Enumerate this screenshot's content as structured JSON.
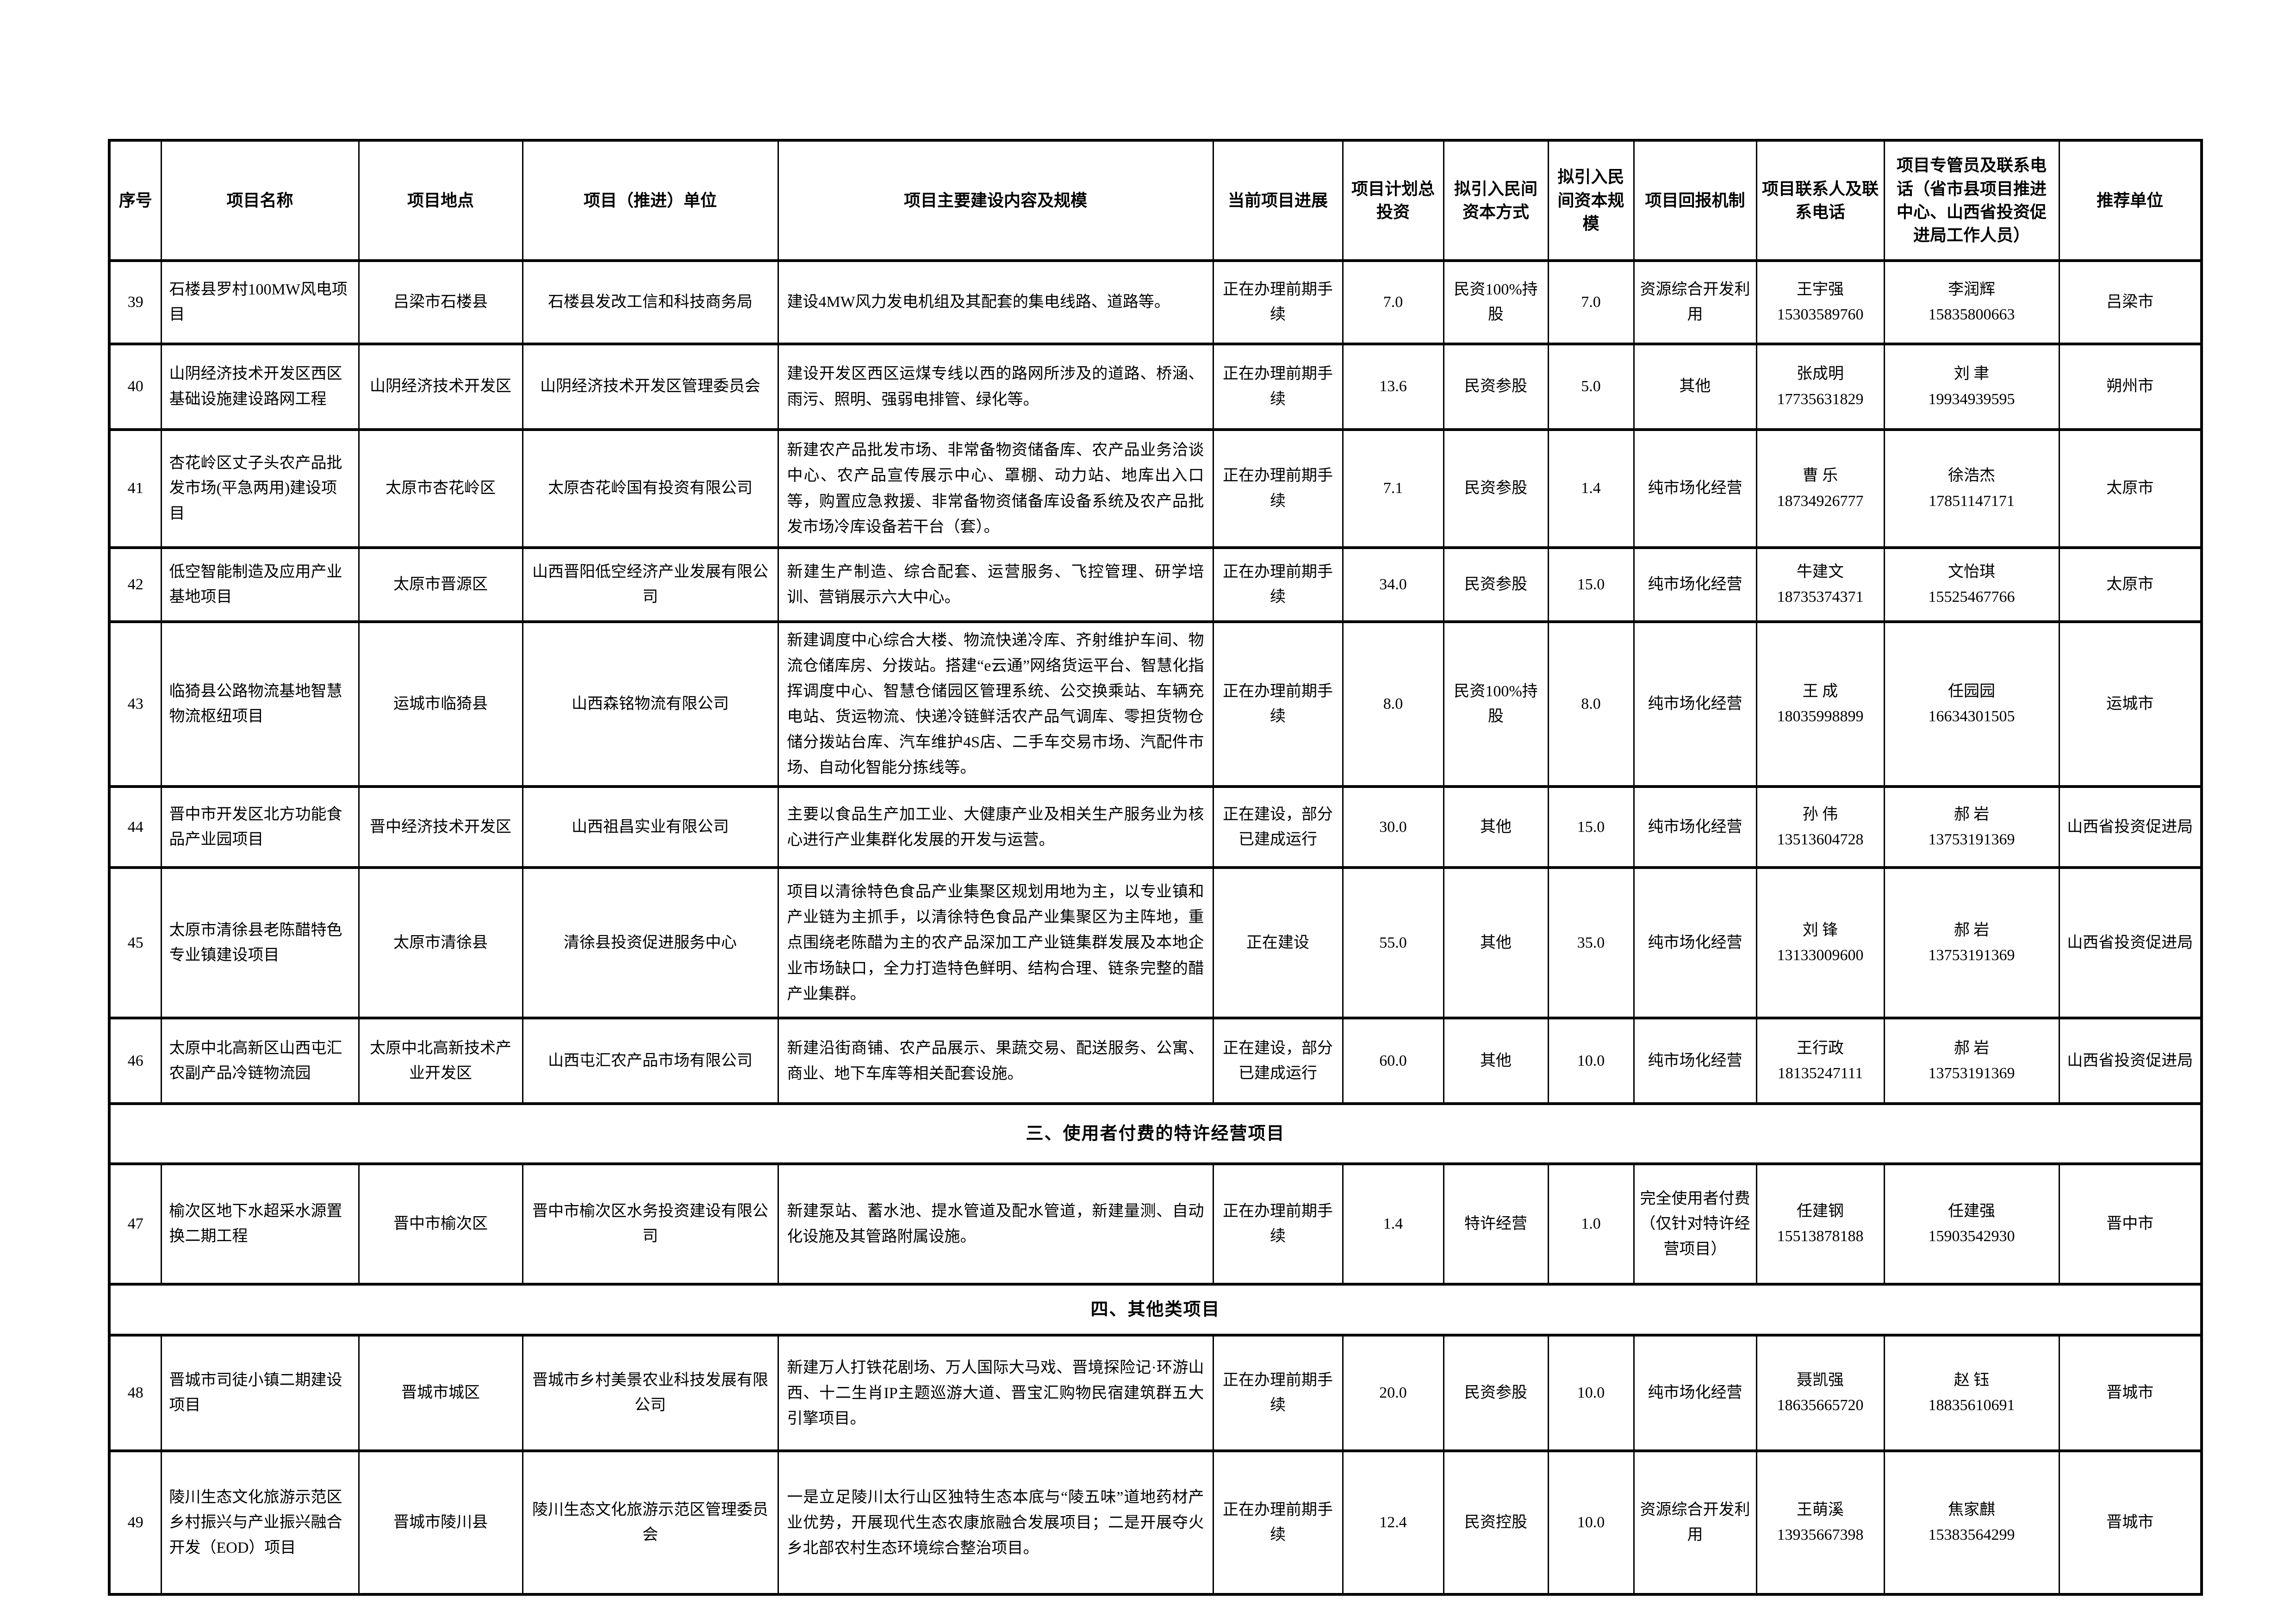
{
  "table": {
    "headers": [
      "序号",
      "项目名称",
      "项目地点",
      "项目（推进）单位",
      "项目主要建设内容及规模",
      "当前项目进展",
      "项目计划总投资",
      "拟引入民间资本方式",
      "拟引入民间资本规模",
      "项目回报机制",
      "项目联系人及联系电话",
      "项目专管员及联系电话（省市县项目推进中心、山西省投资促进局工作人员）",
      "推荐单位"
    ],
    "rows": [
      {
        "type": "project",
        "no": "39",
        "name": "石楼县罗村100MW风电项目",
        "location": "吕梁市石楼县",
        "unit": "石楼县发改工信和科技商务局",
        "content": "建设4MW风力发电机组及其配套的集电线路、道路等。",
        "progress": "正在办理前期手续",
        "investment": "7.0",
        "capital_method": "民资100%持股",
        "capital_scale": "7.0",
        "mechanism": "资源综合开发利用",
        "contact": {
          "name": "王宇强",
          "phone": "15303589760"
        },
        "manager": {
          "name": "李润辉",
          "phone": "15835800663"
        },
        "recommender": "吕梁市"
      },
      {
        "type": "project",
        "no": "40",
        "name": "山阴经济技术开发区西区基础设施建设路网工程",
        "location": "山阴经济技术开发区",
        "unit": "山阴经济技术开发区管理委员会",
        "content": "建设开发区西区运煤专线以西的路网所涉及的道路、桥涵、雨污、照明、强弱电排管、绿化等。",
        "progress": "正在办理前期手续",
        "investment": "13.6",
        "capital_method": "民资参股",
        "capital_scale": "5.0",
        "mechanism": "其他",
        "contact": {
          "name": "张成明",
          "phone": "17735631829"
        },
        "manager": {
          "name": "刘 聿",
          "phone": "19934939595"
        },
        "recommender": "朔州市"
      },
      {
        "type": "project",
        "no": "41",
        "name": "杏花岭区丈子头农产品批发市场(平急两用)建设项目",
        "location": "太原市杏花岭区",
        "unit": "太原杏花岭国有投资有限公司",
        "content": "新建农产品批发市场、非常备物资储备库、农产品业务洽谈中心、农产品宣传展示中心、罩棚、动力站、地库出入口等，购置应急救援、非常备物资储备库设备系统及农产品批发市场冷库设备若干台（套）。",
        "progress": "正在办理前期手续",
        "investment": "7.1",
        "capital_method": "民资参股",
        "capital_scale": "1.4",
        "mechanism": "纯市场化经营",
        "contact": {
          "name": "曹 乐",
          "phone": "18734926777"
        },
        "manager": {
          "name": "徐浩杰",
          "phone": "17851147171"
        },
        "recommender": "太原市"
      },
      {
        "type": "project",
        "no": "42",
        "name": "低空智能制造及应用产业基地项目",
        "location": "太原市晋源区",
        "unit": "山西晋阳低空经济产业发展有限公司",
        "content": "新建生产制造、综合配套、运营服务、飞控管理、研学培训、营销展示六大中心。",
        "progress": "正在办理前期手续",
        "investment": "34.0",
        "capital_method": "民资参股",
        "capital_scale": "15.0",
        "mechanism": "纯市场化经营",
        "contact": {
          "name": "牛建文",
          "phone": "18735374371"
        },
        "manager": {
          "name": "文怡琪",
          "phone": "15525467766"
        },
        "recommender": "太原市"
      },
      {
        "type": "project",
        "no": "43",
        "name": "临猗县公路物流基地智慧物流枢纽项目",
        "location": "运城市临猗县",
        "unit": "山西森铭物流有限公司",
        "content": "新建调度中心综合大楼、物流快递冷库、齐射维护车间、物流仓储库房、分拨站。搭建“e云通”网络货运平台、智慧化指挥调度中心、智慧仓储园区管理系统、公交换乘站、车辆充电站、货运物流、快递冷链鲜活农产品气调库、零担货物仓储分拨站台库、汽车维护4S店、二手车交易市场、汽配件市场、自动化智能分拣线等。",
        "progress": "正在办理前期手续",
        "investment": "8.0",
        "capital_method": "民资100%持股",
        "capital_scale": "8.0",
        "mechanism": "纯市场化经营",
        "contact": {
          "name": "王 成",
          "phone": "18035998899"
        },
        "manager": {
          "name": "任园园",
          "phone": "16634301505"
        },
        "recommender": "运城市"
      },
      {
        "type": "project",
        "no": "44",
        "name": "晋中市开发区北方功能食品产业园项目",
        "location": "晋中经济技术开发区",
        "unit": "山西祖昌实业有限公司",
        "content": "主要以食品生产加工业、大健康产业及相关生产服务业为核心进行产业集群化发展的开发与运营。",
        "progress": "正在建设，部分已建成运行",
        "investment": "30.0",
        "capital_method": "其他",
        "capital_scale": "15.0",
        "mechanism": "纯市场化经营",
        "contact": {
          "name": "孙 伟",
          "phone": "13513604728"
        },
        "manager": {
          "name": "郝 岩",
          "phone": "13753191369"
        },
        "recommender": "山西省投资促进局"
      },
      {
        "type": "project",
        "no": "45",
        "name": "太原市清徐县老陈醋特色专业镇建设项目",
        "location": "太原市清徐县",
        "unit": "清徐县投资促进服务中心",
        "content": "项目以清徐特色食品产业集聚区规划用地为主，以专业镇和产业链为主抓手，以清徐特色食品产业集聚区为主阵地，重点围绕老陈醋为主的农产品深加工产业链集群发展及本地企业市场缺口，全力打造特色鲜明、结构合理、链条完整的醋产业集群。",
        "progress": "正在建设",
        "investment": "55.0",
        "capital_method": "其他",
        "capital_scale": "35.0",
        "mechanism": "纯市场化经营",
        "contact": {
          "name": "刘 锋",
          "phone": "13133009600"
        },
        "manager": {
          "name": "郝 岩",
          "phone": "13753191369"
        },
        "recommender": "山西省投资促进局"
      },
      {
        "type": "project",
        "no": "46",
        "name": "太原中北高新区山西屯汇农副产品冷链物流园",
        "location": "太原中北高新技术产业开发区",
        "unit": "山西屯汇农产品市场有限公司",
        "content": "新建沿街商铺、农产品展示、果蔬交易、配送服务、公寓、商业、地下车库等相关配套设施。",
        "progress": "正在建设，部分已建成运行",
        "investment": "60.0",
        "capital_method": "其他",
        "capital_scale": "10.0",
        "mechanism": "纯市场化经营",
        "contact": {
          "name": "王行政",
          "phone": "18135247111"
        },
        "manager": {
          "name": "郝 岩",
          "phone": "13753191369"
        },
        "recommender": "山西省投资促进局"
      },
      {
        "type": "section",
        "title": "三、使用者付费的特许经营项目"
      },
      {
        "type": "project",
        "no": "47",
        "name": "榆次区地下水超采水源置换二期工程",
        "location": "晋中市榆次区",
        "unit": "晋中市榆次区水务投资建设有限公司",
        "content": "新建泵站、蓄水池、提水管道及配水管道，新建量测、自动化设施及其管路附属设施。",
        "progress": "正在办理前期手续",
        "investment": "1.4",
        "capital_method": "特许经营",
        "capital_scale": "1.0",
        "mechanism": "完全使用者付费（仅针对特许经营项目）",
        "contact": {
          "name": "任建钢",
          "phone": "15513878188"
        },
        "manager": {
          "name": "任建强",
          "phone": "15903542930"
        },
        "recommender": "晋中市"
      },
      {
        "type": "section",
        "title": "四、其他类项目"
      },
      {
        "type": "project",
        "no": "48",
        "name": "晋城市司徒小镇二期建设项目",
        "location": "晋城市城区",
        "unit": "晋城市乡村美景农业科技发展有限公司",
        "content": "新建万人打铁花剧场、万人国际大马戏、晋境探险记·环游山西、十二生肖IP主题巡游大道、晋宝汇购物民宿建筑群五大引擎项目。",
        "progress": "正在办理前期手续",
        "investment": "20.0",
        "capital_method": "民资参股",
        "capital_scale": "10.0",
        "mechanism": "纯市场化经营",
        "contact": {
          "name": "聂凯强",
          "phone": "18635665720"
        },
        "manager": {
          "name": "赵 钰",
          "phone": "18835610691"
        },
        "recommender": "晋城市"
      },
      {
        "type": "project",
        "no": "49",
        "name": "陵川生态文化旅游示范区乡村振兴与产业振兴融合开发（EOD）项目",
        "location": "晋城市陵川县",
        "unit": "陵川生态文化旅游示范区管理委员会",
        "content": "一是立足陵川太行山区独特生态本底与“陵五味”道地药材产业优势，开展现代生态农康旅融合发展项目；二是开展夺火乡北部农村生态环境综合整治项目。",
        "progress": "正在办理前期手续",
        "investment": "12.4",
        "capital_method": "民资控股",
        "capital_scale": "10.0",
        "mechanism": "资源综合开发利用",
        "contact": {
          "name": "王萌溪",
          "phone": "13935667398"
        },
        "manager": {
          "name": "焦家麒",
          "phone": "15383564299"
        },
        "recommender": "晋城市"
      }
    ]
  }
}
